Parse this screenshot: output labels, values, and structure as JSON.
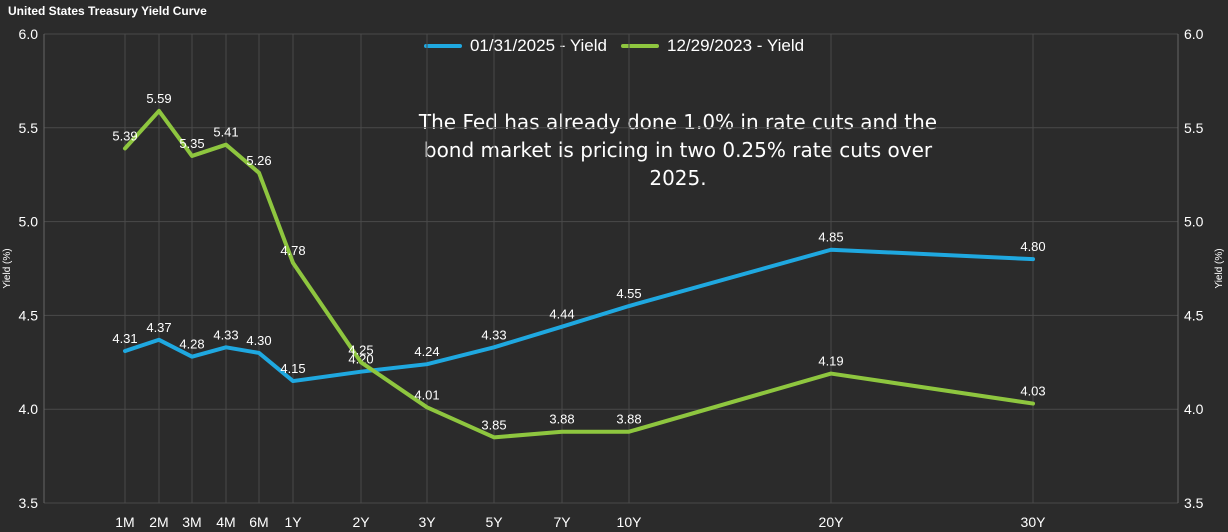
{
  "chart_data": {
    "type": "line",
    "title": "United States Treasury Yield Curve",
    "ylabel": "Yield (%)",
    "ylim": [
      3.5,
      6.0
    ],
    "yticks": [
      "3.5",
      "4.0",
      "4.5",
      "5.0",
      "5.5",
      "6.0"
    ],
    "categories": [
      "1M",
      "2M",
      "3M",
      "4M",
      "6M",
      "1Y",
      "2Y",
      "3Y",
      "5Y",
      "7Y",
      "10Y",
      "20Y",
      "30Y"
    ],
    "x_months": [
      1,
      2,
      3,
      4,
      6,
      12,
      24,
      36,
      60,
      84,
      120,
      240,
      360
    ],
    "series": [
      {
        "name": "01/31/2025 - Yield",
        "color": "#1fa8e0",
        "values": [
          4.31,
          4.37,
          4.28,
          4.33,
          4.3,
          4.15,
          4.2,
          4.24,
          4.33,
          4.44,
          4.55,
          4.85,
          4.8
        ],
        "labels": [
          "4.31",
          "4.37",
          "4.28",
          "4.33",
          "4.30",
          "4.15",
          "4.20",
          "4.24",
          "4.33",
          "4.44",
          "4.55",
          "4.85",
          "4.80"
        ]
      },
      {
        "name": "12/29/2023 - Yield",
        "color": "#8ec63f",
        "values": [
          5.39,
          5.59,
          5.35,
          5.41,
          5.26,
          4.78,
          4.25,
          4.01,
          3.85,
          3.88,
          3.88,
          4.19,
          4.03
        ],
        "labels": [
          "5.39",
          "5.59",
          "5.35",
          "5.41",
          "5.26",
          "4.78",
          "4.25",
          "4.01",
          "3.85",
          "3.88",
          "3.88",
          "4.19",
          "4.03"
        ]
      }
    ],
    "annotation": "The Fed has already done 1.0% in rate cuts and the bond market is pricing in two 0.25% rate cuts over 2025.",
    "grid": true,
    "legend_position": "top-center"
  }
}
